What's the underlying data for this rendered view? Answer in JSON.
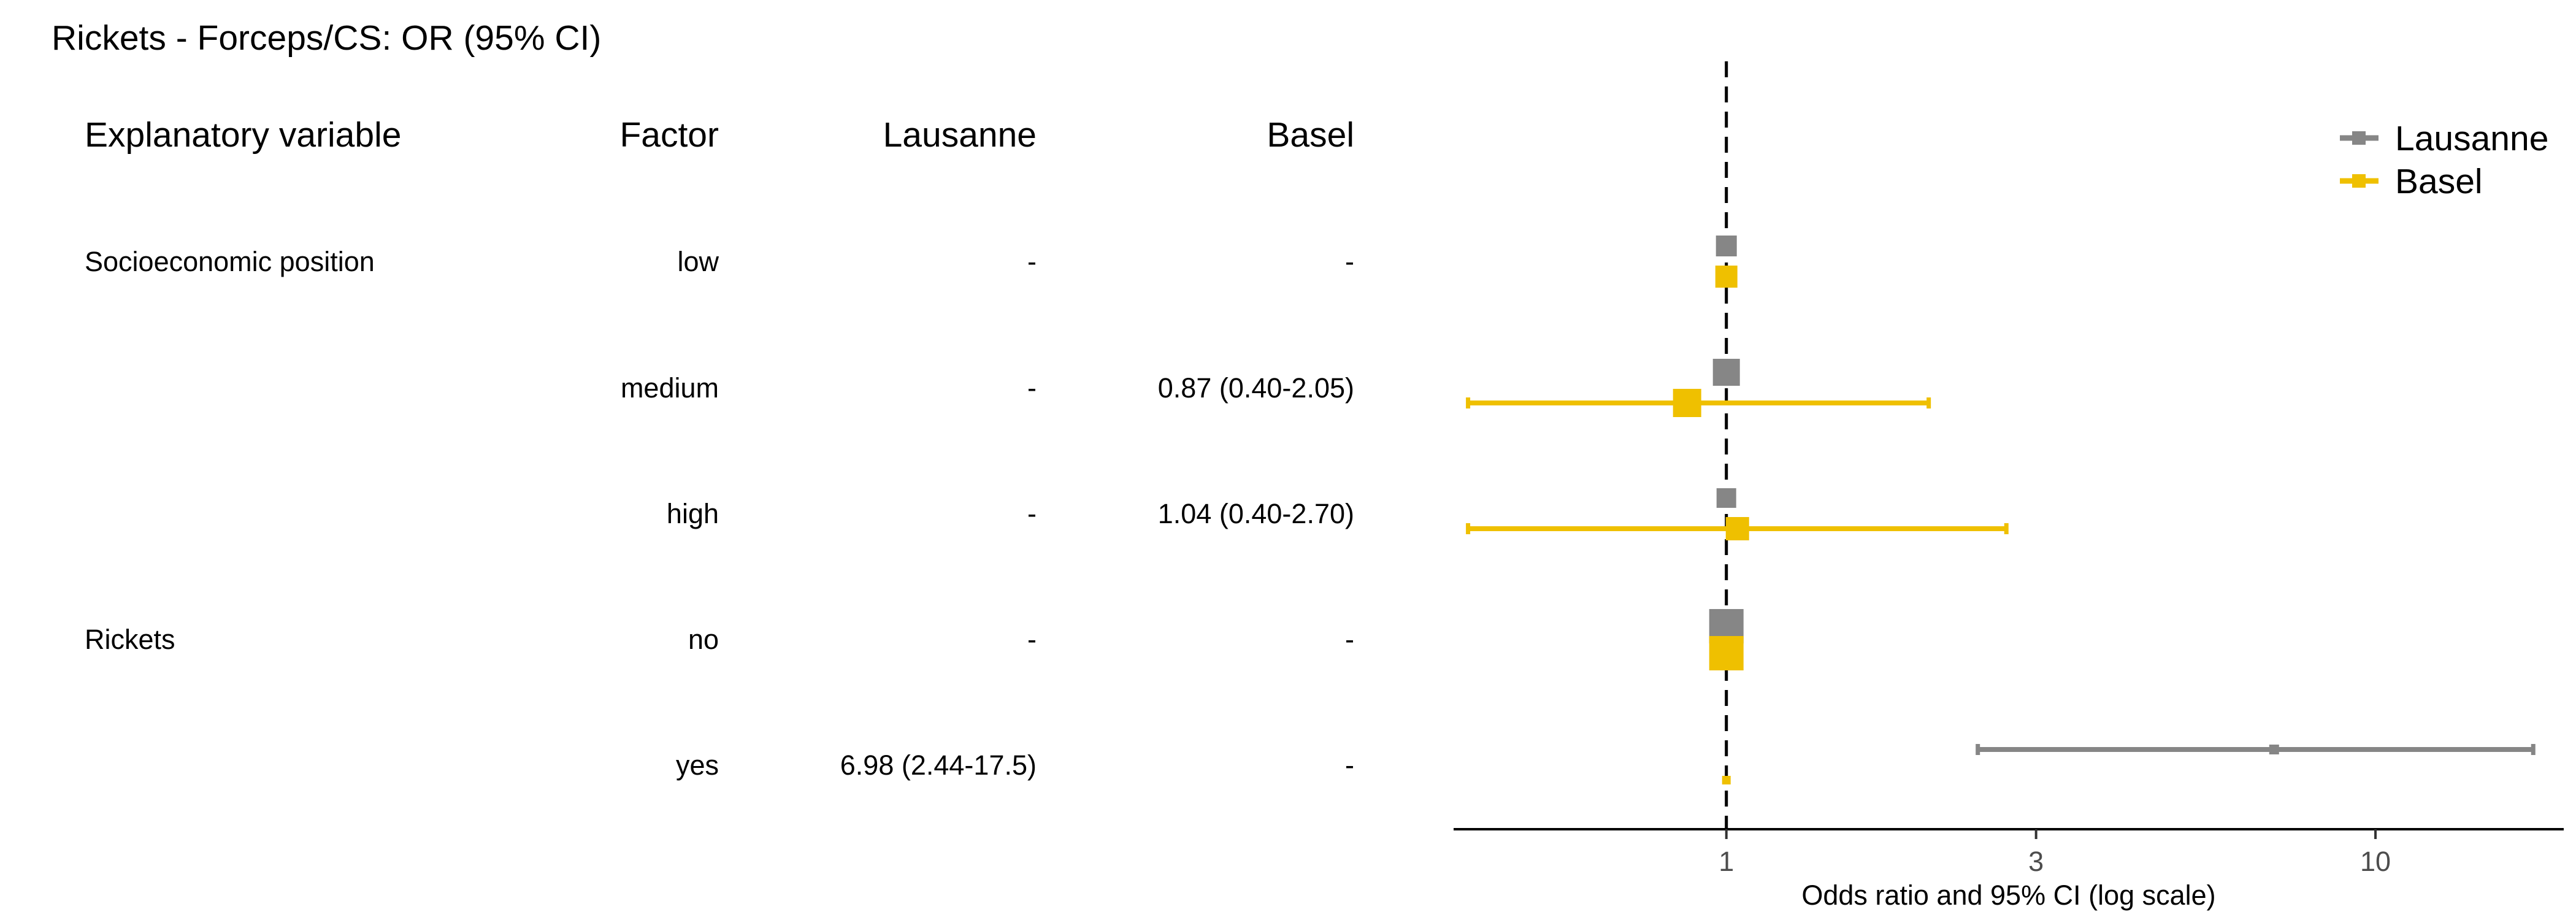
{
  "title": "Rickets - Forceps/CS: OR (95% CI)",
  "columns": {
    "variable": "Explanatory variable",
    "factor": "Factor",
    "lausanne": "Lausanne",
    "basel": "Basel"
  },
  "rows": [
    {
      "variable": "Socioeconomic position",
      "factor": "low",
      "lausanne": "-",
      "basel": "-"
    },
    {
      "variable": "",
      "factor": "medium",
      "lausanne": "-",
      "basel": "0.87 (0.40-2.05)"
    },
    {
      "variable": "",
      "factor": "high",
      "lausanne": "-",
      "basel": "1.04 (0.40-2.70)"
    },
    {
      "variable": "Rickets",
      "factor": "no",
      "lausanne": "-",
      "basel": "-"
    },
    {
      "variable": "",
      "factor": "yes",
      "lausanne": "6.98 (2.44-17.5)",
      "basel": "-"
    }
  ],
  "chart_data": {
    "type": "scatter",
    "title": "",
    "xlabel": "Odds ratio and 95% CI (log scale)",
    "x_scale": "log",
    "xlim": [
      0.38,
      19.5
    ],
    "x_ticks": [
      1,
      3,
      10
    ],
    "x_tick_labels": [
      "1",
      "3",
      "10"
    ],
    "reference_line": 1,
    "legend_position": "top-right",
    "categories": [
      "low",
      "medium",
      "high",
      "no",
      "yes"
    ],
    "series": [
      {
        "name": "Lausanne",
        "color": "#868686",
        "points": [
          {
            "or": 1.0,
            "lo": null,
            "hi": null
          },
          {
            "or": 1.0,
            "lo": null,
            "hi": null
          },
          {
            "or": 1.0,
            "lo": null,
            "hi": null
          },
          {
            "or": 1.0,
            "lo": null,
            "hi": null
          },
          {
            "or": 6.98,
            "lo": 2.44,
            "hi": 17.5
          }
        ]
      },
      {
        "name": "Basel",
        "color": "#EFC000",
        "points": [
          {
            "or": 1.0,
            "lo": null,
            "hi": null
          },
          {
            "or": 0.87,
            "lo": 0.4,
            "hi": 2.05
          },
          {
            "or": 1.04,
            "lo": 0.4,
            "hi": 2.7
          },
          {
            "or": 1.0,
            "lo": null,
            "hi": null
          },
          {
            "or": 1.0,
            "lo": null,
            "hi": null
          }
        ]
      }
    ]
  }
}
